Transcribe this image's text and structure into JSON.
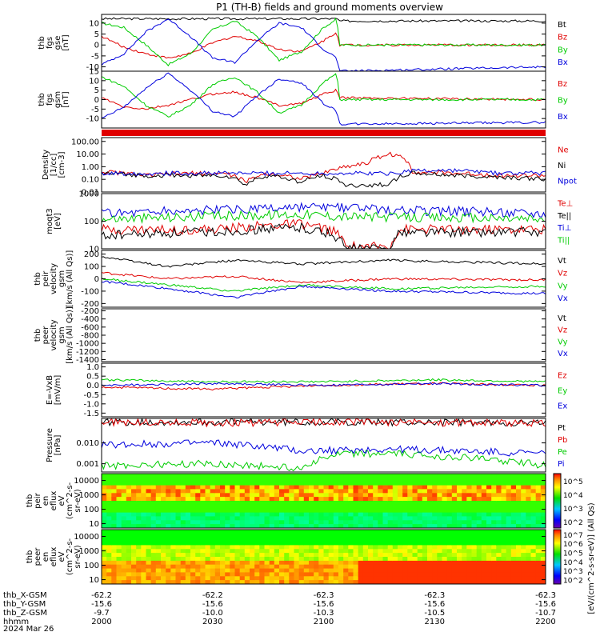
{
  "figure": {
    "title": "P1 (TH-B) fields and ground moments overview",
    "colors": {
      "black": "#000000",
      "red": "#e00000",
      "green": "#00cc00",
      "blue": "#0000dd"
    }
  },
  "chart_data": [
    {
      "id": "fgs_gse",
      "type": "line",
      "ylabel": [
        "thb",
        "fgs",
        "gse",
        "[nT]"
      ],
      "ylim": [
        -12,
        14
      ],
      "yticks": [
        10,
        5,
        0,
        -5,
        -10
      ],
      "series": [
        {
          "name": "Bt",
          "color": "#000000",
          "x": [
            2000,
            2100,
            2106,
            2107,
            2200
          ],
          "y": [
            12,
            12,
            12,
            11,
            11
          ]
        },
        {
          "name": "Bz",
          "color": "#e00000",
          "x": [
            2000,
            2010,
            2020,
            2030,
            2040,
            2050,
            2060,
            2070,
            2080,
            2090,
            2100,
            2106,
            2107,
            2200
          ],
          "y": [
            4,
            -1,
            -4,
            -6,
            -4,
            1,
            4,
            2,
            -2,
            -3,
            2,
            6,
            0,
            0
          ]
        },
        {
          "name": "By",
          "color": "#00cc00",
          "x": [
            2000,
            2010,
            2020,
            2030,
            2040,
            2050,
            2060,
            2070,
            2080,
            2090,
            2100,
            2106,
            2107,
            2200
          ],
          "y": [
            10,
            8,
            0,
            -9,
            -4,
            7,
            11,
            4,
            -7,
            -3,
            8,
            12,
            0,
            0
          ]
        },
        {
          "name": "Bx",
          "color": "#0000dd",
          "x": [
            2000,
            2010,
            2020,
            2030,
            2040,
            2050,
            2060,
            2070,
            2080,
            2090,
            2100,
            2106,
            2107,
            2200
          ],
          "y": [
            -9,
            -4,
            6,
            12,
            4,
            -6,
            -8,
            2,
            10,
            8,
            -2,
            -6,
            -12,
            -10
          ]
        }
      ]
    },
    {
      "id": "fgs_gsm",
      "type": "line",
      "ylabel": [
        "thb",
        "fgs",
        "gsm",
        "[nT]"
      ],
      "ylim": [
        -15,
        15
      ],
      "yticks": [
        15,
        10,
        5,
        0,
        -5,
        -10
      ],
      "series": [
        {
          "name": "Bz",
          "color": "#e00000",
          "x": [
            2000,
            2010,
            2020,
            2030,
            2040,
            2050,
            2060,
            2070,
            2080,
            2090,
            2100,
            2106,
            2107,
            2200
          ],
          "y": [
            1,
            -4,
            -5,
            -3,
            0,
            3,
            4,
            1,
            -3,
            -2,
            3,
            5,
            1,
            0
          ]
        },
        {
          "name": "By",
          "color": "#00cc00",
          "x": [
            2000,
            2010,
            2020,
            2030,
            2040,
            2050,
            2060,
            2070,
            2080,
            2090,
            2100,
            2106,
            2107,
            2200
          ],
          "y": [
            12,
            7,
            -3,
            -9,
            -3,
            8,
            12,
            4,
            -7,
            -3,
            9,
            14,
            0,
            0
          ]
        },
        {
          "name": "Bx",
          "color": "#0000dd",
          "x": [
            2000,
            2010,
            2020,
            2030,
            2040,
            2050,
            2060,
            2070,
            2080,
            2090,
            2100,
            2106,
            2107,
            2200
          ],
          "y": [
            -10,
            -4,
            6,
            14,
            5,
            -6,
            -9,
            2,
            11,
            9,
            -2,
            -6,
            -13,
            -12
          ]
        }
      ]
    },
    {
      "id": "density",
      "type": "line",
      "log": true,
      "ylabel": [
        "Density",
        "[1/cc]",
        "[cm-3]"
      ],
      "ylim": [
        0.01,
        200
      ],
      "yticks": [
        100,
        10,
        1,
        0.1,
        0.01
      ],
      "yticklabels": [
        "100.00",
        "10.00",
        "1.00",
        "0.10",
        "0.01"
      ],
      "series": [
        {
          "name": "Ne",
          "color": "#e00000",
          "x": [
            2000,
            2020,
            2040,
            2055,
            2065,
            2075,
            2090,
            2100,
            2110,
            2120,
            2130,
            2140,
            2160,
            2180,
            2200
          ],
          "y": [
            0.4,
            0.2,
            0.3,
            0.3,
            0.05,
            0.3,
            0.1,
            0.3,
            1,
            2,
            10,
            0.4,
            0.3,
            0.2,
            0.2
          ]
        },
        {
          "name": "Ni",
          "color": "#000000",
          "x": [
            2000,
            2020,
            2040,
            2055,
            2065,
            2075,
            2090,
            2100,
            2110,
            2130,
            2140,
            2160,
            2180,
            2200
          ],
          "y": [
            0.3,
            0.2,
            0.2,
            0.2,
            0.03,
            0.2,
            0.05,
            0.2,
            0.03,
            0.04,
            0.3,
            0.2,
            0.15,
            0.1
          ]
        },
        {
          "name": "Npot",
          "color": "#0000dd",
          "x": [
            2000,
            2100,
            2110,
            2130,
            2140,
            2160,
            2180,
            2200
          ],
          "y": [
            0.3,
            0.3,
            0.3,
            0.3,
            0.5,
            0.5,
            0.3,
            0.3
          ]
        }
      ]
    },
    {
      "id": "temperature",
      "type": "line",
      "log": true,
      "ylabel": [
        "moqt3",
        "[eV]"
      ],
      "ylim": [
        10,
        1000
      ],
      "yticks": [
        1000,
        100,
        10
      ],
      "yticklabels": [
        "1000",
        "100",
        "10"
      ],
      "series": [
        {
          "name": "Te⊥",
          "color": "#e00000",
          "x": [
            2000,
            2050,
            2090,
            2105,
            2110,
            2130,
            2135,
            2200
          ],
          "y": [
            50,
            50,
            80,
            40,
            12,
            12,
            50,
            50
          ]
        },
        {
          "name": "Te||",
          "color": "#000000",
          "x": [
            2000,
            2050,
            2090,
            2105,
            2110,
            2130,
            2135,
            2200
          ],
          "y": [
            30,
            40,
            60,
            30,
            10,
            10,
            40,
            40
          ]
        },
        {
          "name": "Ti⊥",
          "color": "#0000dd",
          "x": [
            2000,
            2050,
            2090,
            2110,
            2130,
            2200
          ],
          "y": [
            200,
            250,
            300,
            300,
            250,
            200
          ]
        },
        {
          "name": "Ti||",
          "color": "#00cc00",
          "x": [
            2000,
            2050,
            2090,
            2110,
            2130,
            2200
          ],
          "y": [
            120,
            150,
            180,
            150,
            140,
            120
          ]
        }
      ]
    },
    {
      "id": "peir_velocity",
      "type": "line",
      "ylabel": [
        "thb",
        "peir",
        "velocity",
        "gsm",
        "[km/s (All Qs)]"
      ],
      "ylim": [
        -230,
        230
      ],
      "yticks": [
        200,
        100,
        0,
        -100,
        -200
      ],
      "series": [
        {
          "name": "Vt",
          "color": "#000000",
          "x": [
            2000,
            2030,
            2060,
            2090,
            2130,
            2200
          ],
          "y": [
            180,
            100,
            150,
            120,
            150,
            120
          ]
        },
        {
          "name": "Vz",
          "color": "#e00000",
          "x": [
            2000,
            2030,
            2060,
            2090,
            2130,
            2200
          ],
          "y": [
            50,
            0,
            20,
            -30,
            0,
            -10
          ]
        },
        {
          "name": "Vy",
          "color": "#00cc00",
          "x": [
            2000,
            2030,
            2060,
            2090,
            2130,
            2200
          ],
          "y": [
            0,
            -50,
            -100,
            -50,
            -80,
            -60
          ]
        },
        {
          "name": "Vx",
          "color": "#0000dd",
          "x": [
            2000,
            2030,
            2060,
            2090,
            2130,
            2200
          ],
          "y": [
            -20,
            -80,
            -150,
            -60,
            -100,
            -120
          ]
        }
      ]
    },
    {
      "id": "peer_velocity",
      "type": "line",
      "ylabel": [
        "thb",
        "peer",
        "velocity",
        "gsm",
        "[km/s (All Qs)]"
      ],
      "ylim": [
        -1450,
        -150
      ],
      "yticks": [
        -200,
        -400,
        -600,
        -800,
        -1000,
        -1200,
        -1400
      ],
      "series": [
        {
          "name": "Vt",
          "color": "#000000",
          "x": [],
          "y": []
        },
        {
          "name": "Vz",
          "color": "#e00000",
          "x": [],
          "y": []
        },
        {
          "name": "Vy",
          "color": "#00cc00",
          "x": [],
          "y": []
        },
        {
          "name": "Vx",
          "color": "#0000dd",
          "x": [],
          "y": []
        }
      ]
    },
    {
      "id": "efield",
      "type": "line",
      "ylabel": [
        "E=-VxB",
        "[mV/m]"
      ],
      "ylim": [
        -1.7,
        1.2
      ],
      "yticks": [
        1.0,
        0.5,
        0.0,
        -0.5,
        -1.0,
        -1.5
      ],
      "yticklabels": [
        "1.0",
        "0.5",
        "0.0",
        "-0.5",
        "-1.0",
        "-1.5"
      ],
      "series": [
        {
          "name": "Ez",
          "color": "#e00000",
          "x": [
            2000,
            2050,
            2100,
            2150,
            2200
          ],
          "y": [
            -0.1,
            -0.2,
            0,
            0.1,
            0
          ]
        },
        {
          "name": "Ey",
          "color": "#00cc00",
          "x": [
            2000,
            2050,
            2100,
            2150,
            2200
          ],
          "y": [
            0.3,
            0.2,
            0.2,
            0.3,
            0.2
          ]
        },
        {
          "name": "Ex",
          "color": "#0000dd",
          "x": [
            2000,
            2050,
            2100,
            2150,
            2200
          ],
          "y": [
            0,
            0.1,
            0,
            0.1,
            0
          ]
        }
      ]
    },
    {
      "id": "pressure",
      "type": "line",
      "log": true,
      "ylabel": [
        "Pressure",
        "[nPa]"
      ],
      "ylim": [
        0.0004,
        0.15
      ],
      "yticks": [
        0.01,
        0.001
      ],
      "yticklabels": [
        "0.010",
        "0.001"
      ],
      "series": [
        {
          "name": "Pt",
          "color": "#000000",
          "x": [
            2000,
            2050,
            2100,
            2110,
            2200
          ],
          "y": [
            0.1,
            0.1,
            0.1,
            0.1,
            0.09
          ]
        },
        {
          "name": "Pb",
          "color": "#e00000",
          "x": [
            2000,
            2050,
            2100,
            2110,
            2200
          ],
          "y": [
            0.1,
            0.09,
            0.1,
            0.1,
            0.09
          ]
        },
        {
          "name": "Pe",
          "color": "#00cc00",
          "x": [
            2000,
            2050,
            2090,
            2110,
            2130,
            2200
          ],
          "y": [
            0.0008,
            0.001,
            0.0006,
            0.003,
            0.003,
            0.0008
          ]
        },
        {
          "name": "Pi",
          "color": "#0000dd",
          "x": [
            2000,
            2050,
            2090,
            2130,
            2200
          ],
          "y": [
            0.008,
            0.01,
            0.004,
            0.005,
            0.003
          ]
        }
      ]
    },
    {
      "id": "peir_spec",
      "type": "heatmap",
      "log": true,
      "ylabel": [
        "thb",
        "peir",
        "en",
        "eflux",
        "eV",
        "(cm^2-s-",
        "sr-eV)"
      ],
      "ylim": [
        5,
        30000
      ],
      "yticks": [
        10000,
        1000,
        100,
        10
      ],
      "yticklabels": [
        "10000",
        "1000",
        "100",
        "10"
      ],
      "colorbar": {
        "label": "[eV/(cm^2-s-sr-eV)] (All Qs)",
        "ticks": [
          "10^5",
          "10^4",
          "10^3",
          "10^2"
        ]
      }
    },
    {
      "id": "peer_spec",
      "type": "heatmap",
      "log": true,
      "ylabel": [
        "thb",
        "peer",
        "en",
        "eflux",
        "eV",
        "(cm^2-s-",
        "sr-eV)"
      ],
      "ylim": [
        5,
        30000
      ],
      "yticks": [
        10000,
        1000,
        100,
        10
      ],
      "yticklabels": [
        "10000",
        "1000",
        "100",
        "10"
      ],
      "colorbar": {
        "label": "",
        "ticks": [
          "10^7",
          "10^6",
          "10^5",
          "10^4",
          "10^3",
          "10^2"
        ]
      }
    }
  ],
  "x_axis": {
    "range": [
      2000,
      2200
    ],
    "rows": [
      {
        "label": "thb_X-GSM",
        "values": [
          "-62.2",
          "-62.2",
          "-62.3",
          "-62.3",
          "-62.3"
        ]
      },
      {
        "label": "thb_Y-GSM",
        "values": [
          "-15.6",
          "-15.6",
          "-15.6",
          "-15.6",
          "-15.6"
        ]
      },
      {
        "label": "thb_Z-GSM",
        "values": [
          "-9.7",
          "-10.0",
          "-10.3",
          "-10.5",
          "-10.7"
        ]
      },
      {
        "label": "hhmm",
        "values": [
          "2000",
          "2030",
          "2100",
          "2130",
          "2200"
        ]
      }
    ],
    "date": "2024 Mar 26"
  }
}
